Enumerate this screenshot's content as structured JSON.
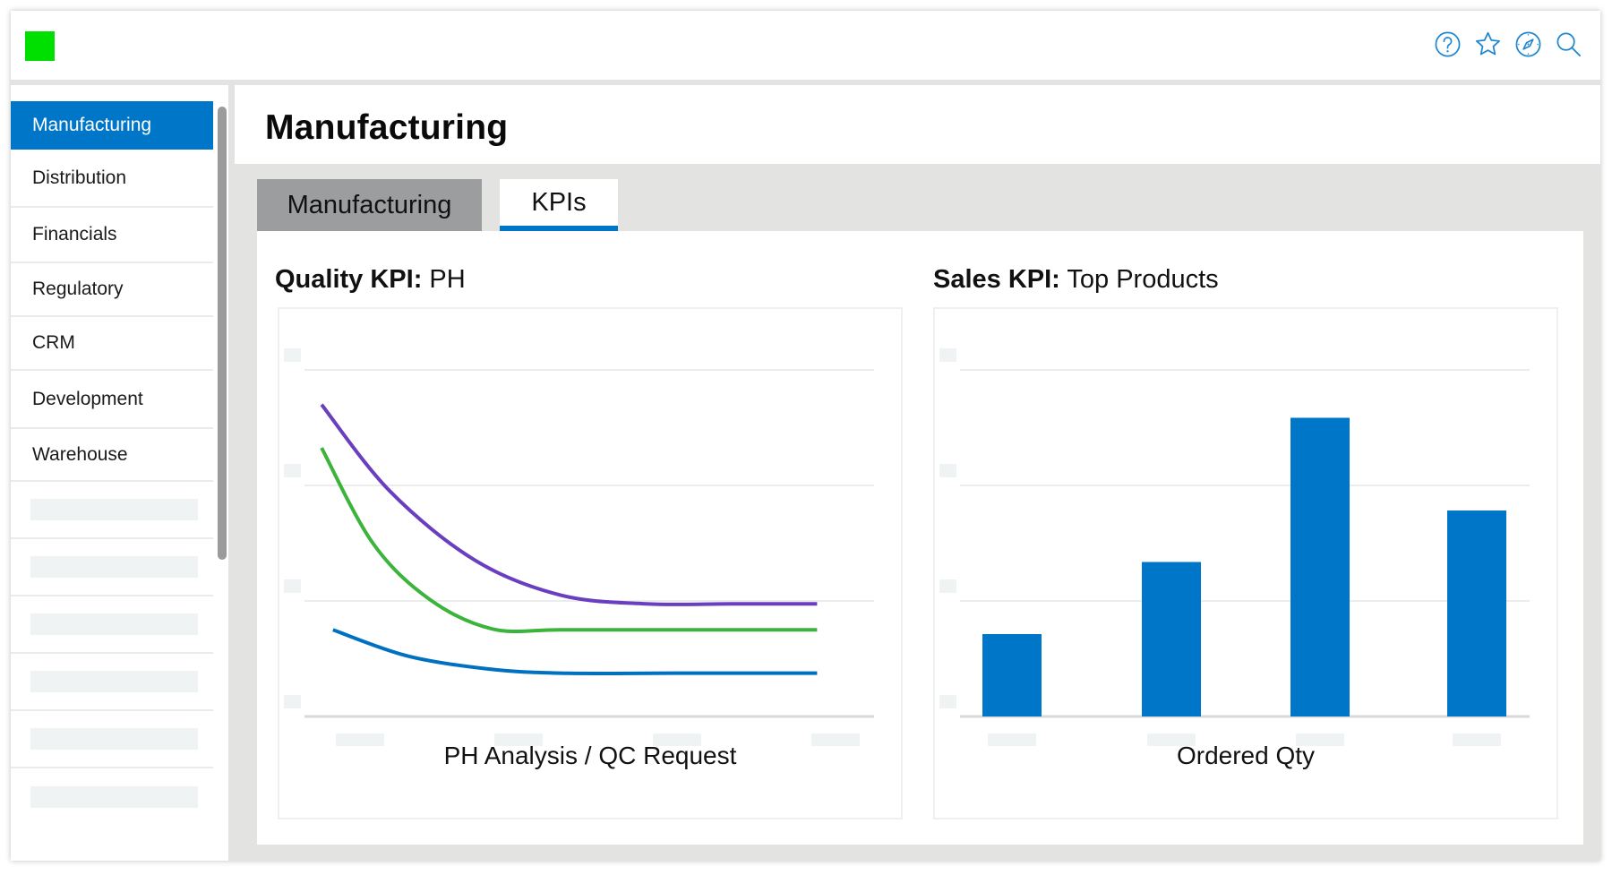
{
  "app": {
    "logo_color": "#00e000",
    "top_icons": [
      {
        "name": "help-icon",
        "label": "Help"
      },
      {
        "name": "star-icon",
        "label": "Favorites"
      },
      {
        "name": "compass-icon",
        "label": "Explore"
      },
      {
        "name": "search-icon",
        "label": "Search"
      }
    ]
  },
  "sidebar": {
    "items": [
      {
        "label": "Manufacturing",
        "active": true
      },
      {
        "label": "Distribution"
      },
      {
        "label": "Financials"
      },
      {
        "label": "Regulatory"
      },
      {
        "label": "CRM"
      },
      {
        "label": "Development"
      },
      {
        "label": "Warehouse"
      }
    ],
    "placeholder_count": 6
  },
  "header": {
    "title": "Manufacturing"
  },
  "tabs": [
    {
      "label": "Manufacturing",
      "active": false
    },
    {
      "label": "KPIs",
      "active": true
    }
  ],
  "colors": {
    "accent": "#0076c8",
    "purple": "#6a3fbf",
    "green": "#3cb43c",
    "blue": "#0070c0"
  },
  "chart_data": [
    {
      "type": "line",
      "title_bold": "Quality KPI:",
      "title_rest": " PH",
      "xlabel": "PH Analysis / QC Request",
      "ylabel": "",
      "x_tick_count": 4,
      "y_tick_count": 4,
      "grid": true,
      "xlim": [
        0,
        10
      ],
      "ylim": [
        0,
        4
      ],
      "series": [
        {
          "name": "purple",
          "color": "#6a3fbf",
          "x": [
            0.3,
            1.5,
            3.0,
            4.5,
            6.0,
            7.5,
            9.0
          ],
          "y": [
            3.6,
            2.6,
            1.8,
            1.4,
            1.3,
            1.3,
            1.3
          ]
        },
        {
          "name": "green",
          "color": "#3cb43c",
          "x": [
            0.3,
            1.2,
            2.2,
            3.3,
            4.5,
            6.5,
            9.0
          ],
          "y": [
            3.1,
            2.0,
            1.35,
            1.01,
            1.0,
            1.0,
            1.0
          ]
        },
        {
          "name": "blue",
          "color": "#0070c0",
          "x": [
            0.5,
            1.8,
            3.2,
            4.5,
            6.5,
            9.0
          ],
          "y": [
            1.0,
            0.7,
            0.55,
            0.5,
            0.5,
            0.5
          ]
        }
      ]
    },
    {
      "type": "bar",
      "title_bold": "Sales KPI:",
      "title_rest": " Top Products",
      "xlabel": "Ordered Qty",
      "ylabel": "",
      "categories": [
        "",
        "",
        "",
        ""
      ],
      "values": [
        0.8,
        1.5,
        2.9,
        2.0
      ],
      "color": "#0076c8",
      "y_tick_count": 4,
      "grid": true,
      "ylim": [
        0,
        3.4
      ]
    }
  ]
}
